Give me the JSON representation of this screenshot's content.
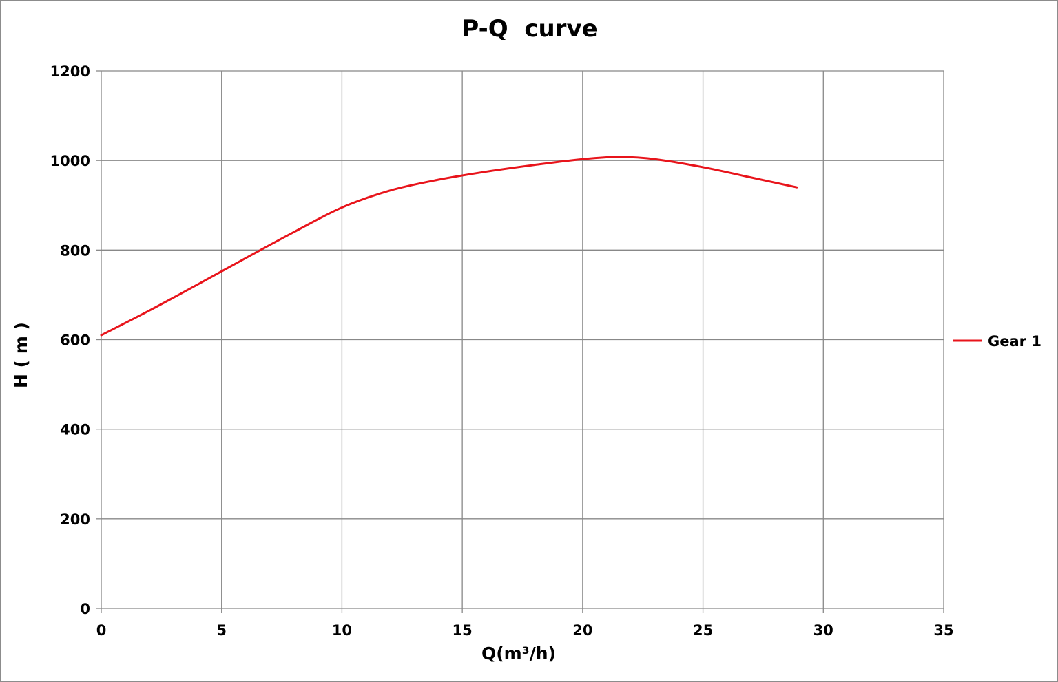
{
  "chart_data": {
    "type": "line",
    "title": "P-Q  curve",
    "xlabel": "Q(m³/h)",
    "ylabel": "H ( m )",
    "xlim": [
      0,
      35
    ],
    "ylim": [
      0,
      1200
    ],
    "x_ticks": [
      "0",
      "5",
      "10",
      "15",
      "20",
      "25",
      "30",
      "35"
    ],
    "y_ticks": [
      "0",
      "200",
      "400",
      "600",
      "800",
      "1000",
      "1200"
    ],
    "grid": true,
    "legend_position": "right",
    "series": [
      {
        "name": "Gear 1",
        "color": "#e8141b",
        "x": [
          0,
          2,
          4,
          6,
          8,
          10,
          12,
          14,
          16,
          18,
          20,
          21.6,
          23,
          25,
          27,
          28.9
        ],
        "y": [
          610,
          665,
          723,
          782,
          840,
          895,
          933,
          957,
          975,
          990,
          1003,
          1008,
          1003,
          985,
          962,
          940
        ]
      }
    ]
  }
}
